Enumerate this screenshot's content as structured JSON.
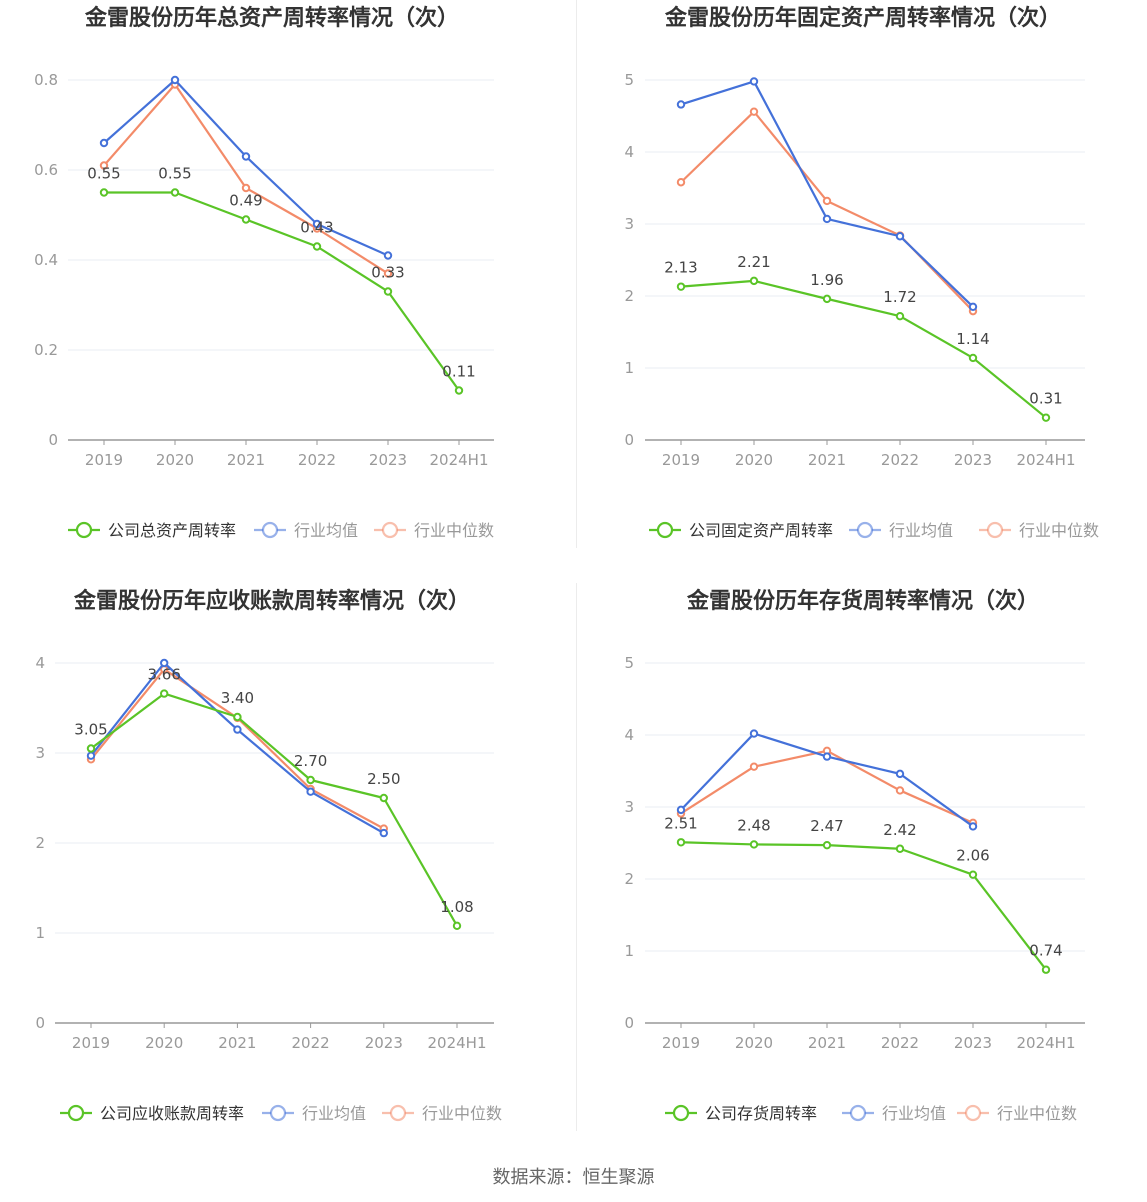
{
  "source_text": "数据来源：恒生聚源",
  "colors": {
    "company": "#5ac427",
    "average": "#4471d9",
    "median": "#f38b69",
    "grid": "#e9ecf3",
    "axis": "#999999",
    "tick": "#999999"
  },
  "chart_data": [
    {
      "type": "line",
      "title": "金雷股份历年总资产周转率情况（次）",
      "categories": [
        "2019",
        "2020",
        "2021",
        "2022",
        "2023",
        "2024H1"
      ],
      "ylim": [
        0,
        0.8
      ],
      "yticks": [
        0,
        0.2,
        0.4,
        0.6,
        0.8
      ],
      "ytick_labels": [
        "0",
        "0.2",
        "0.4",
        "0.6",
        "0.8"
      ],
      "grid": true,
      "legend_position": "bottom",
      "series": [
        {
          "name": "公司总资产周转率",
          "role": "company",
          "values": [
            0.55,
            0.55,
            0.49,
            0.43,
            0.33,
            0.11
          ],
          "labels": [
            "0.55",
            "0.55",
            "0.49",
            "0.43",
            "0.33",
            "0.11"
          ]
        },
        {
          "name": "行业均值",
          "role": "average",
          "values": [
            0.66,
            0.8,
            0.63,
            0.48,
            0.41,
            null
          ]
        },
        {
          "name": "行业中位数",
          "role": "median",
          "values": [
            0.61,
            0.79,
            0.56,
            0.47,
            0.37,
            null
          ]
        }
      ]
    },
    {
      "type": "line",
      "title": "金雷股份历年固定资产周转率情况（次）",
      "categories": [
        "2019",
        "2020",
        "2021",
        "2022",
        "2023",
        "2024H1"
      ],
      "ylim": [
        0,
        5
      ],
      "yticks": [
        0,
        1,
        2,
        3,
        4,
        5
      ],
      "ytick_labels": [
        "0",
        "1",
        "2",
        "3",
        "4",
        "5"
      ],
      "grid": true,
      "legend_position": "bottom",
      "series": [
        {
          "name": "公司固定资产周转率",
          "role": "company",
          "values": [
            2.13,
            2.21,
            1.96,
            1.72,
            1.14,
            0.31
          ],
          "labels": [
            "2.13",
            "2.21",
            "1.96",
            "1.72",
            "1.14",
            "0.31"
          ]
        },
        {
          "name": "行业均值",
          "role": "average",
          "values": [
            4.66,
            4.98,
            3.07,
            2.83,
            1.85,
            null
          ]
        },
        {
          "name": "行业中位数",
          "role": "median",
          "values": [
            3.58,
            4.56,
            3.32,
            2.84,
            1.79,
            null
          ]
        }
      ]
    },
    {
      "type": "line",
      "title": "金雷股份历年应收账款周转率情况（次）",
      "categories": [
        "2019",
        "2020",
        "2021",
        "2022",
        "2023",
        "2024H1"
      ],
      "ylim": [
        0,
        4
      ],
      "yticks": [
        0,
        1,
        2,
        3,
        4
      ],
      "ytick_labels": [
        "0",
        "1",
        "2",
        "3",
        "4"
      ],
      "grid": true,
      "legend_position": "bottom",
      "series": [
        {
          "name": "公司应收账款周转率",
          "role": "company",
          "values": [
            3.05,
            3.66,
            3.4,
            2.7,
            2.5,
            1.08
          ],
          "labels": [
            "3.05",
            "3.66",
            "3.40",
            "2.70",
            "2.50",
            "1.08"
          ]
        },
        {
          "name": "行业均值",
          "role": "average",
          "values": [
            2.97,
            4.0,
            3.26,
            2.57,
            2.11,
            null
          ]
        },
        {
          "name": "行业中位数",
          "role": "median",
          "values": [
            2.93,
            3.93,
            3.39,
            2.6,
            2.16,
            null
          ]
        }
      ]
    },
    {
      "type": "line",
      "title": "金雷股份历年存货周转率情况（次）",
      "categories": [
        "2019",
        "2020",
        "2021",
        "2022",
        "2023",
        "2024H1"
      ],
      "ylim": [
        0,
        5
      ],
      "yticks": [
        0,
        1,
        2,
        3,
        4,
        5
      ],
      "ytick_labels": [
        "0",
        "1",
        "2",
        "3",
        "4",
        "5"
      ],
      "grid": true,
      "legend_position": "bottom",
      "series": [
        {
          "name": "公司存货周转率",
          "role": "company",
          "values": [
            2.51,
            2.48,
            2.47,
            2.42,
            2.06,
            0.74
          ],
          "labels": [
            "2.51",
            "2.48",
            "2.47",
            "2.42",
            "2.06",
            "0.74"
          ]
        },
        {
          "name": "行业均值",
          "role": "average",
          "values": [
            2.96,
            4.02,
            3.7,
            3.46,
            2.73,
            null
          ]
        },
        {
          "name": "行业中位数",
          "role": "median",
          "values": [
            2.91,
            3.56,
            3.78,
            3.23,
            2.78,
            null
          ]
        }
      ]
    }
  ]
}
